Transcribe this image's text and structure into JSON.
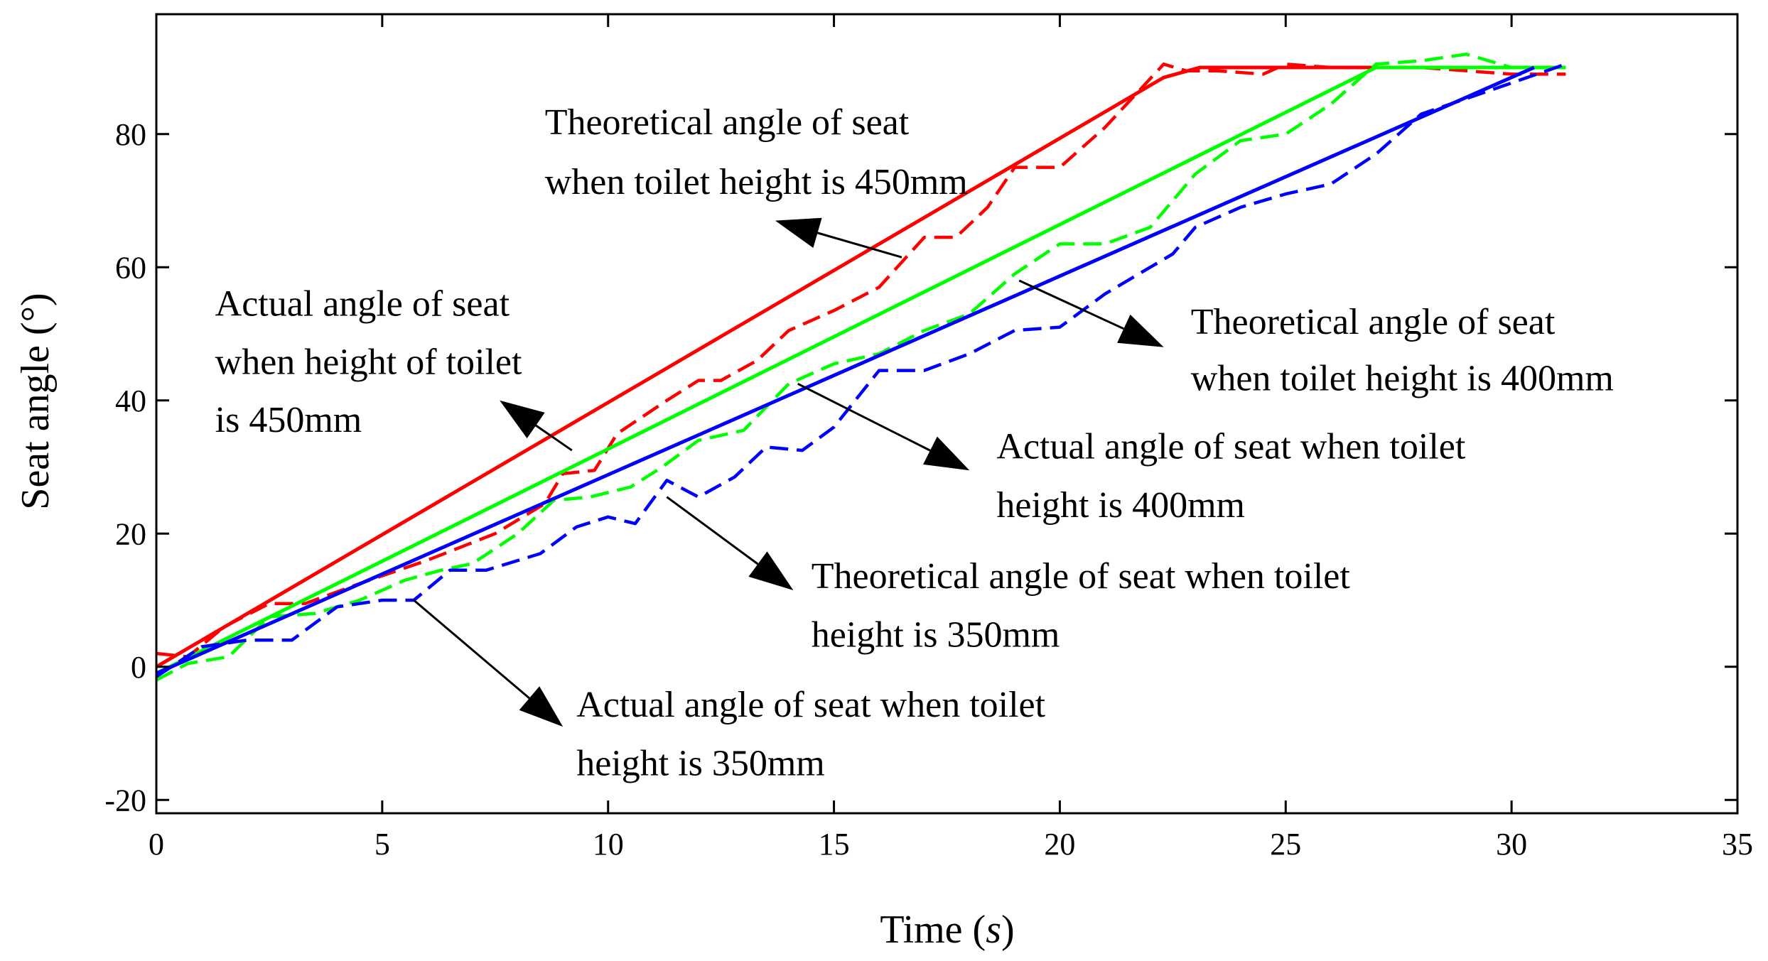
{
  "chart_data": {
    "type": "line",
    "xlabel": "Time",
    "xlabel_unit": "s",
    "ylabel": "Seat angle (°)",
    "xlim": [
      0,
      35
    ],
    "ylim": [
      -22,
      98
    ],
    "xticks": [
      "0",
      "5",
      "10",
      "15",
      "20",
      "25",
      "30",
      "35"
    ],
    "yticks": [
      "-20",
      "0",
      "20",
      "40",
      "60",
      "80"
    ],
    "grid": false,
    "legend": "none",
    "series": [
      {
        "color": "#ff0000",
        "style": "solid",
        "x": [
          0,
          22.3,
          23.1,
          31.2
        ],
        "y": [
          0,
          88.5,
          90,
          90
        ]
      },
      {
        "color": "#ff0000",
        "style": "dashed",
        "x": [
          0,
          0.7,
          1.5,
          2.5,
          3.3,
          4.5,
          6,
          7.5,
          8.6,
          9,
          9.7,
          10.2,
          11.3,
          12,
          12.5,
          13.3,
          14,
          15,
          16,
          17,
          17.7,
          18.4,
          19,
          20,
          21,
          22.3,
          22.8,
          23.5,
          24.5,
          25,
          26,
          28,
          30,
          31.2
        ],
        "y": [
          2,
          1.5,
          6,
          9.5,
          9.5,
          12.5,
          16,
          20,
          24.5,
          29,
          29.5,
          35,
          40,
          43,
          43,
          46,
          50.5,
          53.5,
          57,
          64.5,
          64.5,
          69,
          75,
          75,
          81,
          90.5,
          89.5,
          89.5,
          89,
          90.5,
          90,
          90,
          89,
          89
        ]
      },
      {
        "color": "#00ff00",
        "style": "solid",
        "x": [
          0,
          27,
          31.2
        ],
        "y": [
          -1,
          90,
          90
        ]
      },
      {
        "color": "#00ff00",
        "style": "dashed",
        "x": [
          0,
          0.7,
          1.6,
          2.5,
          3.5,
          4.5,
          5.5,
          6.3,
          7,
          8,
          8.8,
          9.6,
          10.5,
          11.2,
          12,
          13,
          14,
          15,
          16,
          17,
          18,
          19,
          20,
          21,
          22,
          23,
          24,
          25,
          26,
          27,
          28,
          29,
          30,
          31.2
        ],
        "y": [
          -2,
          0.5,
          1.5,
          7.5,
          8,
          10,
          13,
          14.5,
          15.5,
          20,
          25,
          25.5,
          27,
          30,
          34,
          35.5,
          42.5,
          45.5,
          47,
          50.5,
          53,
          59,
          63.5,
          63.5,
          66,
          74,
          79,
          80,
          84.5,
          90.5,
          91,
          92,
          90,
          90
        ]
      },
      {
        "color": "#0000ff",
        "style": "solid",
        "x": [
          0,
          30.5
        ],
        "y": [
          -1,
          90
        ]
      },
      {
        "color": "#0000ff",
        "style": "dashed",
        "x": [
          0,
          1,
          2,
          3,
          4,
          5,
          5.7,
          6.5,
          7.3,
          8.5,
          9.3,
          10,
          10.6,
          11.3,
          12,
          12.8,
          13.5,
          14.3,
          15,
          16,
          17,
          18,
          19,
          20,
          21,
          22.5,
          23,
          24,
          25,
          26,
          27,
          28,
          29.5,
          31.2
        ],
        "y": [
          -1.5,
          3,
          4,
          4,
          9,
          10,
          10,
          14.5,
          14.5,
          17,
          21,
          22.5,
          21.5,
          28,
          25.5,
          28.5,
          33,
          32.5,
          36,
          44.5,
          44.5,
          47,
          50.5,
          51,
          56,
          62,
          66,
          69,
          71,
          72.5,
          77,
          83,
          86.5,
          90.5
        ]
      }
    ],
    "annotations": [
      {
        "lines": [
          "Theoretical angle of seat",
          "when toilet height is 450mm"
        ],
        "target_series": 0,
        "arrow_from": [
          16.5,
          61.5
        ],
        "arrow_to": [
          13.7,
          67
        ]
      },
      {
        "lines": [
          "Actual angle of seat",
          "when height of toilet",
          "is 450mm"
        ],
        "target_series": 1,
        "arrow_from": [
          9.2,
          32.5
        ],
        "arrow_to": [
          7.6,
          40
        ]
      },
      {
        "lines": [
          "Theoretical angle of seat",
          "when toilet height is 400mm"
        ],
        "target_series": 2,
        "arrow_from": [
          19.1,
          58
        ],
        "arrow_to": [
          22.3,
          48
        ]
      },
      {
        "lines": [
          "Actual angle of seat when toilet",
          "height is 400mm"
        ],
        "target_series": 3,
        "arrow_from": [
          14.2,
          42.5
        ],
        "arrow_to": [
          18,
          29.5
        ]
      },
      {
        "lines": [
          "Theoretical angle of seat when toilet",
          "height is 350mm"
        ],
        "target_series": 4,
        "arrow_from": [
          11.3,
          25.5
        ],
        "arrow_to": [
          14.1,
          11.5
        ]
      },
      {
        "lines": [
          "Actual angle of seat when toilet",
          "height is 350mm"
        ],
        "target_series": 5,
        "arrow_from": [
          5.7,
          10
        ],
        "arrow_to": [
          9,
          -9
        ]
      }
    ],
    "annotation_label_positions": [
      {
        "x": 8.6,
        "lines_y": [
          80,
          71
        ]
      },
      {
        "x": 1.3,
        "lines_y": [
          52.7,
          44
        ],
        "extra_line_y": 35.3
      },
      {
        "x": 22.9,
        "lines_y": [
          50,
          41.5
        ]
      },
      {
        "x": 18.6,
        "lines_y": [
          31.3,
          22.5
        ]
      },
      {
        "x": 14.5,
        "lines_y": [
          11.8,
          3
        ]
      },
      {
        "x": 9.3,
        "lines_y": [
          -7.5,
          -16.3
        ]
      }
    ]
  }
}
